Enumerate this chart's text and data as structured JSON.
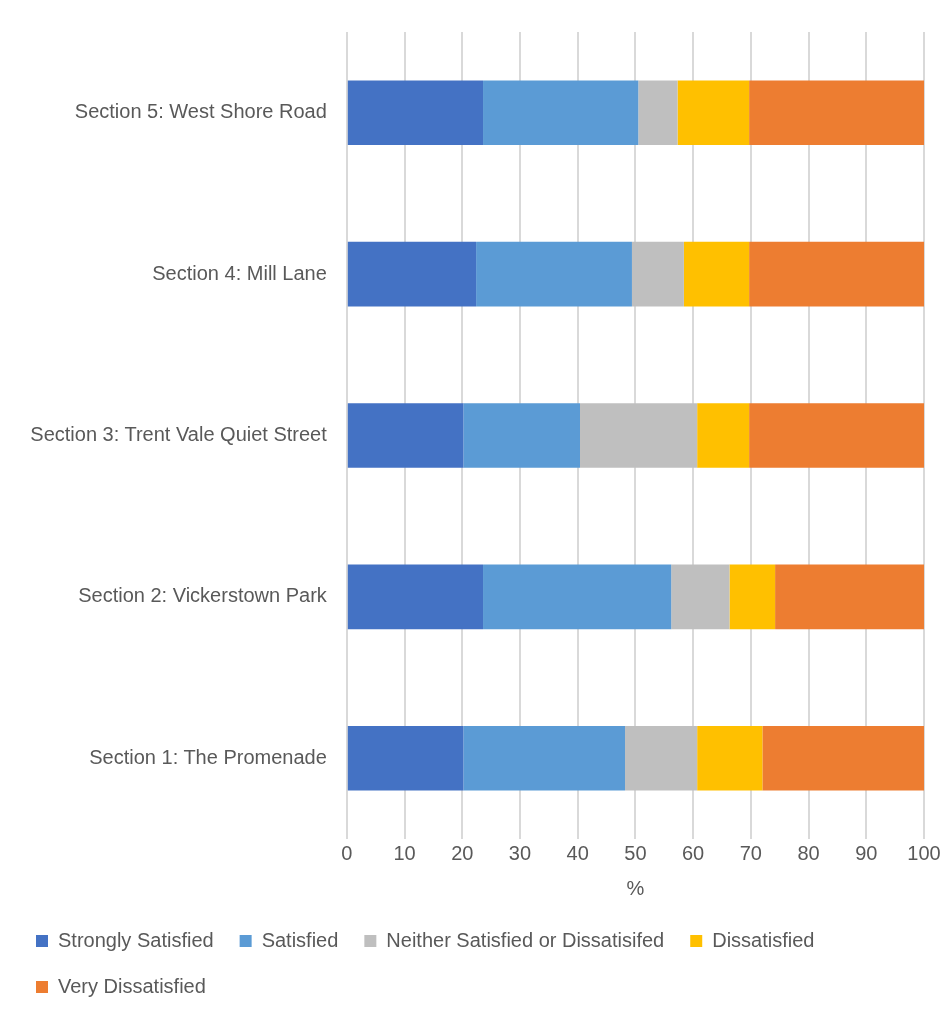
{
  "chart_data": {
    "type": "bar",
    "orientation": "horizontal",
    "stacked": true,
    "xlabel": "%",
    "categories": [
      "Section 5: West Shore Road",
      "Section 4: Mill Lane",
      "Section 3: Trent Vale Quiet Street",
      "Section 2: Vickerstown Park",
      "Section 1: The Promenade"
    ],
    "series": [
      {
        "name": "Strongly Satisfied",
        "color": "#4472c4",
        "values": [
          23.6,
          22.4,
          20.2,
          23.6,
          20.2
        ]
      },
      {
        "name": "Satisfied",
        "color": "#5b9bd5",
        "values": [
          26.9,
          27.0,
          20.2,
          32.6,
          28.0
        ]
      },
      {
        "name": "Neither Satisfied or Dissatisifed",
        "color": "#bfbfbf",
        "values": [
          6.8,
          9.0,
          20.3,
          10.1,
          12.5
        ]
      },
      {
        "name": "Dissatisfied",
        "color": "#ffc000",
        "values": [
          12.4,
          11.3,
          9.0,
          7.9,
          11.3
        ]
      },
      {
        "name": "Very Dissatisfied",
        "color": "#ed7d31",
        "values": [
          30.3,
          30.3,
          30.3,
          25.8,
          28.0
        ]
      }
    ],
    "xlim": [
      0,
      100
    ],
    "xticks": [
      0,
      10,
      20,
      30,
      40,
      50,
      60,
      70,
      80,
      90,
      100
    ],
    "grid": "x",
    "legend": "bottom"
  }
}
